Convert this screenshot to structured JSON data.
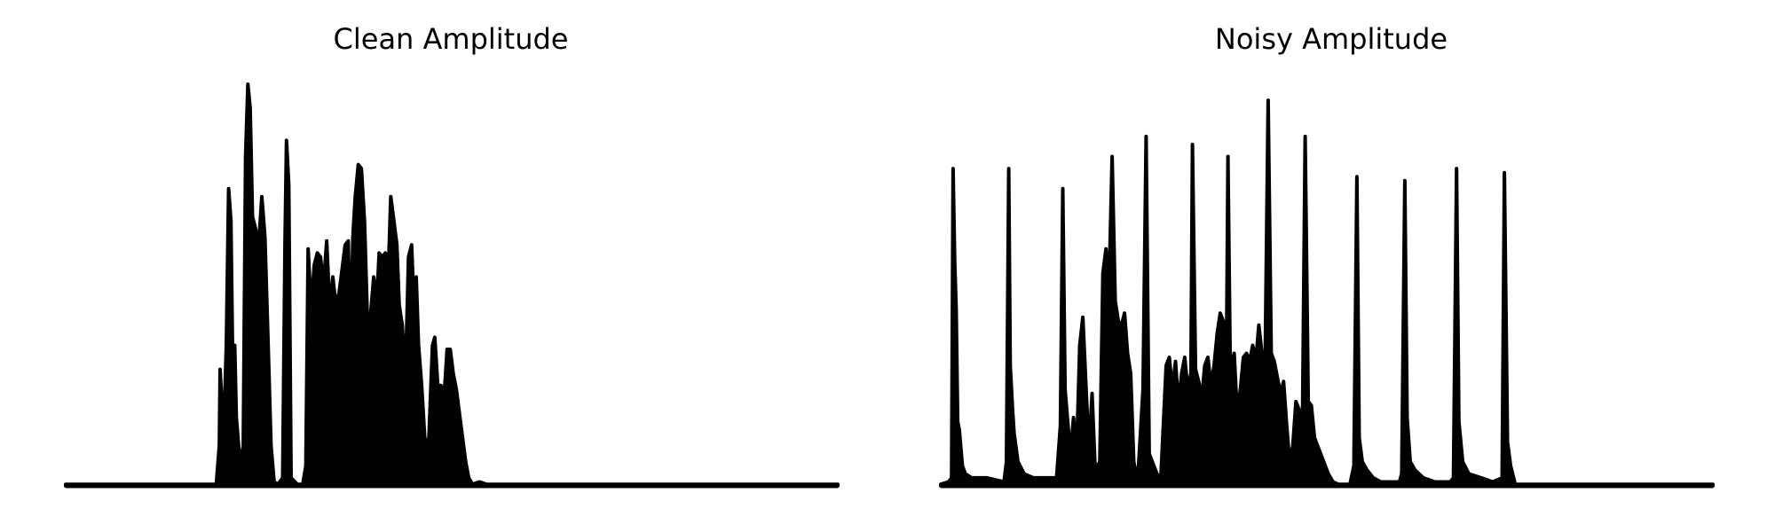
{
  "chart_data": [
    {
      "type": "area",
      "title": "Clean Amplitude",
      "xlabel": "",
      "ylabel": "",
      "axes_visible": false,
      "grid": false,
      "ylim": [
        0,
        1
      ],
      "xlim": [
        0,
        1
      ],
      "color": "#000000",
      "envelope": [
        [
          0.0,
          0.004
        ],
        [
          0.12,
          0.004
        ],
        [
          0.195,
          0.004
        ],
        [
          0.199,
          0.1
        ],
        [
          0.2,
          0.29
        ],
        [
          0.202,
          0.22
        ],
        [
          0.205,
          0.15
        ],
        [
          0.208,
          0.35
        ],
        [
          0.211,
          0.74
        ],
        [
          0.214,
          0.66
        ],
        [
          0.217,
          0.2
        ],
        [
          0.219,
          0.35
        ],
        [
          0.221,
          0.17
        ],
        [
          0.224,
          0.1
        ],
        [
          0.227,
          0.05
        ],
        [
          0.23,
          0.1
        ],
        [
          0.233,
          0.82
        ],
        [
          0.236,
          1.0
        ],
        [
          0.239,
          0.94
        ],
        [
          0.242,
          0.67
        ],
        [
          0.246,
          0.64
        ],
        [
          0.25,
          0.6
        ],
        [
          0.254,
          0.72
        ],
        [
          0.258,
          0.62
        ],
        [
          0.262,
          0.37
        ],
        [
          0.266,
          0.1
        ],
        [
          0.27,
          0.01
        ],
        [
          0.275,
          0.004
        ],
        [
          0.281,
          0.02
        ],
        [
          0.284,
          0.6
        ],
        [
          0.286,
          0.86
        ],
        [
          0.289,
          0.75
        ],
        [
          0.292,
          0.02
        ],
        [
          0.3,
          0.004
        ],
        [
          0.307,
          0.004
        ],
        [
          0.311,
          0.05
        ],
        [
          0.314,
          0.59
        ],
        [
          0.318,
          0.44
        ],
        [
          0.322,
          0.55
        ],
        [
          0.326,
          0.58
        ],
        [
          0.33,
          0.57
        ],
        [
          0.334,
          0.5
        ],
        [
          0.338,
          0.61
        ],
        [
          0.342,
          0.44
        ],
        [
          0.346,
          0.52
        ],
        [
          0.35,
          0.45
        ],
        [
          0.354,
          0.48
        ],
        [
          0.358,
          0.54
        ],
        [
          0.362,
          0.6
        ],
        [
          0.366,
          0.61
        ],
        [
          0.369,
          0.35
        ],
        [
          0.372,
          0.62
        ],
        [
          0.375,
          0.72
        ],
        [
          0.379,
          0.8
        ],
        [
          0.383,
          0.79
        ],
        [
          0.387,
          0.66
        ],
        [
          0.391,
          0.4
        ],
        [
          0.395,
          0.43
        ],
        [
          0.399,
          0.52
        ],
        [
          0.403,
          0.46
        ],
        [
          0.406,
          0.58
        ],
        [
          0.41,
          0.57
        ],
        [
          0.414,
          0.58
        ],
        [
          0.418,
          0.54
        ],
        [
          0.421,
          0.72
        ],
        [
          0.425,
          0.66
        ],
        [
          0.429,
          0.6
        ],
        [
          0.432,
          0.45
        ],
        [
          0.436,
          0.4
        ],
        [
          0.44,
          0.27
        ],
        [
          0.444,
          0.57
        ],
        [
          0.448,
          0.6
        ],
        [
          0.451,
          0.45
        ],
        [
          0.454,
          0.52
        ],
        [
          0.457,
          0.35
        ],
        [
          0.461,
          0.25
        ],
        [
          0.465,
          0.12
        ],
        [
          0.47,
          0.1
        ],
        [
          0.475,
          0.35
        ],
        [
          0.478,
          0.37
        ],
        [
          0.482,
          0.25
        ],
        [
          0.486,
          0.25
        ],
        [
          0.49,
          0.22
        ],
        [
          0.494,
          0.34
        ],
        [
          0.498,
          0.34
        ],
        [
          0.502,
          0.28
        ],
        [
          0.506,
          0.24
        ],
        [
          0.51,
          0.18
        ],
        [
          0.514,
          0.12
        ],
        [
          0.518,
          0.06
        ],
        [
          0.522,
          0.02
        ],
        [
          0.527,
          0.004
        ],
        [
          0.536,
          0.01
        ],
        [
          0.545,
          0.004
        ],
        [
          1.0,
          0.004
        ]
      ]
    },
    {
      "type": "area",
      "title": "Noisy Amplitude",
      "xlabel": "",
      "ylabel": "",
      "axes_visible": false,
      "grid": false,
      "ylim": [
        0,
        1
      ],
      "xlim": [
        0,
        1
      ],
      "color": "#000000",
      "envelope": [
        [
          0.0,
          0.004
        ],
        [
          0.01,
          0.01
        ],
        [
          0.014,
          0.02
        ],
        [
          0.016,
          0.79
        ],
        [
          0.018,
          0.56
        ],
        [
          0.02,
          0.44
        ],
        [
          0.022,
          0.16
        ],
        [
          0.024,
          0.14
        ],
        [
          0.028,
          0.05
        ],
        [
          0.032,
          0.03
        ],
        [
          0.04,
          0.02
        ],
        [
          0.06,
          0.02
        ],
        [
          0.082,
          0.01
        ],
        [
          0.085,
          0.06
        ],
        [
          0.088,
          0.79
        ],
        [
          0.09,
          0.3
        ],
        [
          0.093,
          0.19
        ],
        [
          0.095,
          0.13
        ],
        [
          0.1,
          0.06
        ],
        [
          0.108,
          0.03
        ],
        [
          0.12,
          0.02
        ],
        [
          0.15,
          0.02
        ],
        [
          0.155,
          0.15
        ],
        [
          0.158,
          0.74
        ],
        [
          0.161,
          0.24
        ],
        [
          0.164,
          0.17
        ],
        [
          0.168,
          0.08
        ],
        [
          0.172,
          0.17
        ],
        [
          0.176,
          0.08
        ],
        [
          0.18,
          0.35
        ],
        [
          0.184,
          0.42
        ],
        [
          0.188,
          0.25
        ],
        [
          0.192,
          0.09
        ],
        [
          0.196,
          0.23
        ],
        [
          0.2,
          0.04
        ],
        [
          0.206,
          0.06
        ],
        [
          0.21,
          0.53
        ],
        [
          0.214,
          0.59
        ],
        [
          0.218,
          0.5
        ],
        [
          0.222,
          0.82
        ],
        [
          0.226,
          0.46
        ],
        [
          0.23,
          0.41
        ],
        [
          0.234,
          0.4
        ],
        [
          0.238,
          0.43
        ],
        [
          0.242,
          0.33
        ],
        [
          0.246,
          0.28
        ],
        [
          0.25,
          0.06
        ],
        [
          0.255,
          0.01
        ],
        [
          0.262,
          0.24
        ],
        [
          0.266,
          0.87
        ],
        [
          0.27,
          0.08
        ],
        [
          0.274,
          0.06
        ],
        [
          0.28,
          0.03
        ],
        [
          0.285,
          0.02
        ],
        [
          0.292,
          0.3
        ],
        [
          0.296,
          0.32
        ],
        [
          0.3,
          0.24
        ],
        [
          0.304,
          0.31
        ],
        [
          0.308,
          0.2
        ],
        [
          0.312,
          0.28
        ],
        [
          0.316,
          0.32
        ],
        [
          0.32,
          0.24
        ],
        [
          0.324,
          0.28
        ],
        [
          0.326,
          0.85
        ],
        [
          0.33,
          0.29
        ],
        [
          0.334,
          0.26
        ],
        [
          0.338,
          0.22
        ],
        [
          0.342,
          0.3
        ],
        [
          0.346,
          0.32
        ],
        [
          0.35,
          0.25
        ],
        [
          0.354,
          0.3
        ],
        [
          0.358,
          0.38
        ],
        [
          0.362,
          0.43
        ],
        [
          0.366,
          0.41
        ],
        [
          0.37,
          0.3
        ],
        [
          0.372,
          0.82
        ],
        [
          0.375,
          0.28
        ],
        [
          0.38,
          0.33
        ],
        [
          0.384,
          0.18
        ],
        [
          0.388,
          0.24
        ],
        [
          0.392,
          0.32
        ],
        [
          0.396,
          0.33
        ],
        [
          0.4,
          0.31
        ],
        [
          0.404,
          0.35
        ],
        [
          0.408,
          0.31
        ],
        [
          0.412,
          0.4
        ],
        [
          0.416,
          0.33
        ],
        [
          0.42,
          0.29
        ],
        [
          0.424,
          0.96
        ],
        [
          0.428,
          0.33
        ],
        [
          0.432,
          0.31
        ],
        [
          0.436,
          0.27
        ],
        [
          0.44,
          0.23
        ],
        [
          0.444,
          0.26
        ],
        [
          0.448,
          0.15
        ],
        [
          0.452,
          0.06
        ],
        [
          0.456,
          0.1
        ],
        [
          0.46,
          0.21
        ],
        [
          0.464,
          0.19
        ],
        [
          0.468,
          0.07
        ],
        [
          0.472,
          0.87
        ],
        [
          0.476,
          0.21
        ],
        [
          0.48,
          0.2
        ],
        [
          0.484,
          0.12
        ],
        [
          0.49,
          0.09
        ],
        [
          0.496,
          0.06
        ],
        [
          0.502,
          0.03
        ],
        [
          0.508,
          0.01
        ],
        [
          0.515,
          0.004
        ],
        [
          0.53,
          0.004
        ],
        [
          0.535,
          0.05
        ],
        [
          0.539,
          0.77
        ],
        [
          0.542,
          0.12
        ],
        [
          0.546,
          0.06
        ],
        [
          0.552,
          0.04
        ],
        [
          0.56,
          0.02
        ],
        [
          0.57,
          0.01
        ],
        [
          0.594,
          0.01
        ],
        [
          0.597,
          0.03
        ],
        [
          0.601,
          0.76
        ],
        [
          0.604,
          0.17
        ],
        [
          0.608,
          0.06
        ],
        [
          0.614,
          0.04
        ],
        [
          0.625,
          0.02
        ],
        [
          0.64,
          0.01
        ],
        [
          0.66,
          0.01
        ],
        [
          0.664,
          0.02
        ],
        [
          0.668,
          0.79
        ],
        [
          0.671,
          0.16
        ],
        [
          0.676,
          0.06
        ],
        [
          0.684,
          0.03
        ],
        [
          0.7,
          0.02
        ],
        [
          0.715,
          0.01
        ],
        [
          0.727,
          0.02
        ],
        [
          0.73,
          0.78
        ],
        [
          0.734,
          0.11
        ],
        [
          0.738,
          0.05
        ],
        [
          0.744,
          0.004
        ],
        [
          1.0,
          0.004
        ]
      ]
    }
  ]
}
